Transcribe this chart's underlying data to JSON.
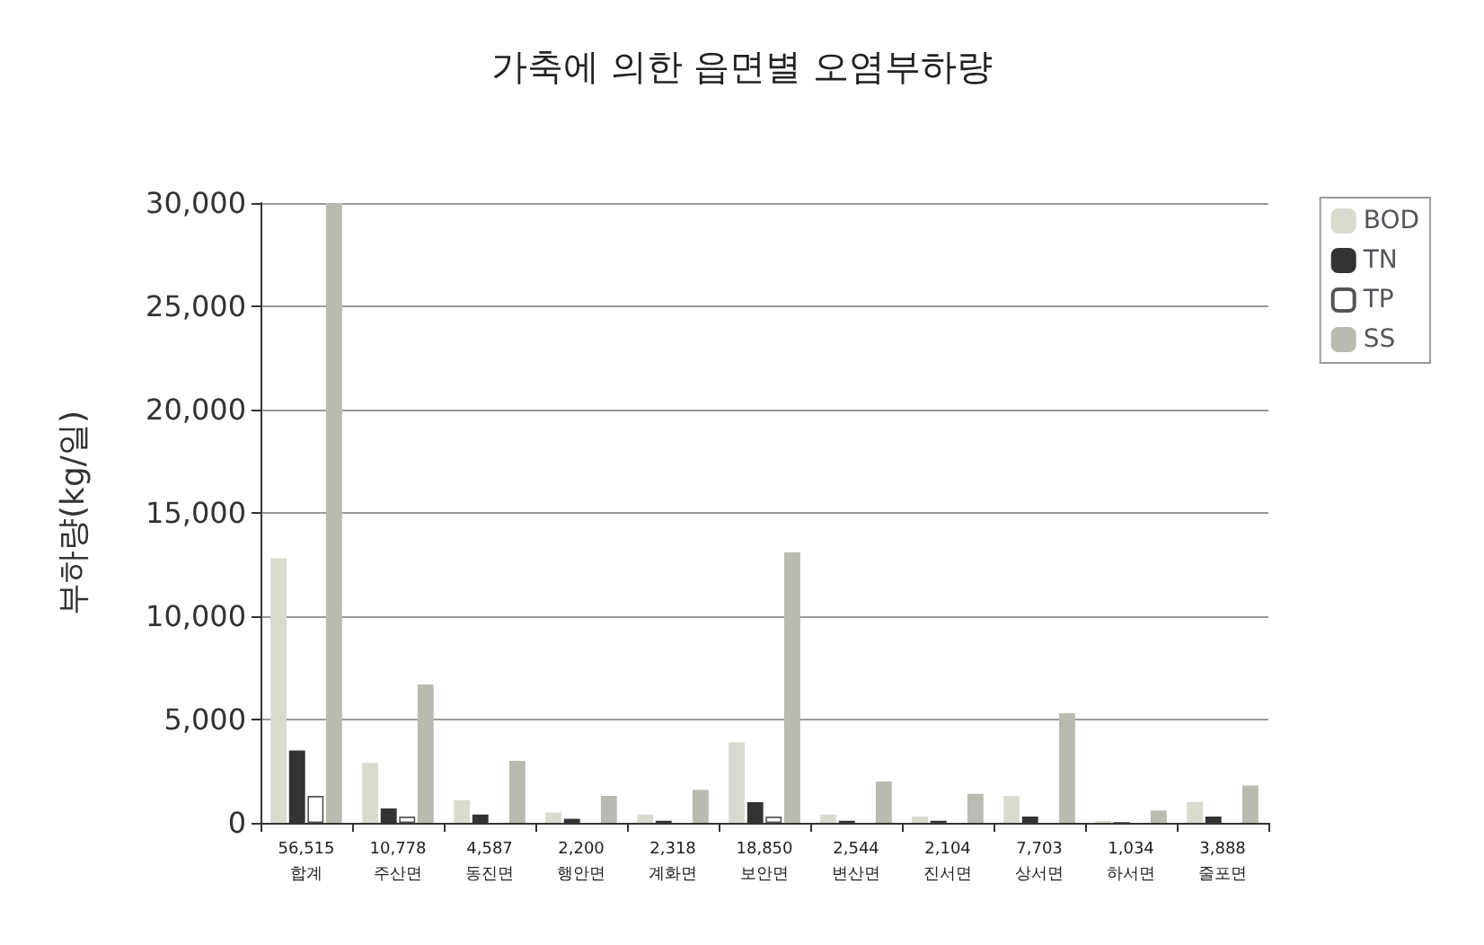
{
  "chart_data": {
    "type": "bar",
    "title": "가축에 의한 읍면별 오염부하량",
    "ylabel": "부하량(kg/일)",
    "categories": [
      "합계",
      "주산면",
      "동진면",
      "행안면",
      "계화면",
      "보안면",
      "변산면",
      "진서면",
      "상서면",
      "하서면",
      "줄포면"
    ],
    "series": [
      {
        "name": "BOD",
        "color": "#d8dccf",
        "values": [
          12800,
          2900,
          1100,
          500,
          400,
          3900,
          400,
          300,
          1300,
          100,
          1000
        ]
      },
      {
        "name": "TN",
        "color": "#333333",
        "values": [
          3500,
          700,
          400,
          200,
          100,
          1000,
          100,
          100,
          300,
          0,
          300
        ]
      },
      {
        "name": "TP",
        "color": "#ffffff",
        "values": [
          1300,
          300,
          100,
          0,
          0,
          300,
          0,
          0,
          100,
          0,
          100
        ]
      },
      {
        "name": "SS",
        "color": "#b8bcb0",
        "values": [
          30000,
          6700,
          3000,
          1300,
          1600,
          13100,
          2000,
          1400,
          5300,
          600,
          1800
        ]
      }
    ],
    "annotations": [
      "56,515",
      "10,778",
      "4,587",
      "2,200",
      "2,318",
      "18,850",
      "2,544",
      "2,104",
      "7,703",
      "1,034",
      "3,888"
    ],
    "ylim": [
      0,
      30000
    ],
    "yticks": [
      0,
      {
        "value": 5000,
        "label": "5,000"
      },
      {
        "value": 10000,
        "label": "10,000"
      },
      {
        "value": 15000,
        "label": "15,000"
      },
      {
        "value": 20000,
        "label": "20,000"
      },
      {
        "value": 25000,
        "label": "25,000"
      },
      {
        "value": 30000,
        "label": "30,000"
      }
    ],
    "grid": "y",
    "legend": "top right"
  }
}
